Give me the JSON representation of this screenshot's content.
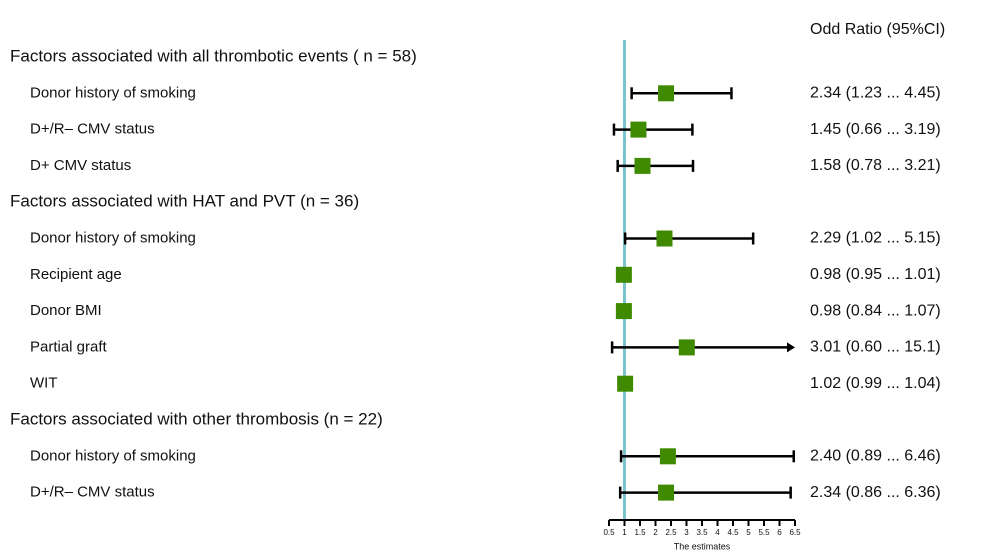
{
  "chart_data": {
    "type": "forest",
    "column_header": "Odd Ratio (95%CI)",
    "xlabel": "The estimates",
    "xlim": [
      0.5,
      6.5
    ],
    "xticks": [
      0.5,
      1,
      1.5,
      2,
      2.5,
      3,
      3.5,
      4,
      4.5,
      5,
      5.5,
      6,
      6.5
    ],
    "reference_line": 1,
    "color": "#3f8a00",
    "reference_color": "#79c4cc",
    "groups": [
      {
        "title": "Factors associated with all thrombotic events ( n = 58)",
        "items": [
          {
            "label": "Donor history of smoking",
            "estimate": 2.34,
            "lower": 1.23,
            "upper": 4.45,
            "value_label": "2.34 (1.23 ... 4.45)"
          },
          {
            "label": "D+/R– CMV status",
            "estimate": 1.45,
            "lower": 0.66,
            "upper": 3.19,
            "value_label": "1.45 (0.66 ... 3.19)"
          },
          {
            "label": "D+ CMV status",
            "estimate": 1.58,
            "lower": 0.78,
            "upper": 3.21,
            "value_label": "1.58 (0.78 ... 3.21)"
          }
        ]
      },
      {
        "title": "Factors associated with HAT and PVT (n = 36)",
        "items": [
          {
            "label": "Donor history of smoking",
            "estimate": 2.29,
            "lower": 1.02,
            "upper": 5.15,
            "value_label": "2.29 (1.02 ... 5.15)"
          },
          {
            "label": "Recipient age",
            "estimate": 0.98,
            "lower": 0.95,
            "upper": 1.01,
            "value_label": "0.98 (0.95 ... 1.01)"
          },
          {
            "label": "Donor BMI",
            "estimate": 0.98,
            "lower": 0.84,
            "upper": 1.07,
            "value_label": "0.98 (0.84 ... 1.07)"
          },
          {
            "label": "Partial graft",
            "estimate": 3.01,
            "lower": 0.6,
            "upper": 15.1,
            "value_label": "3.01 (0.60 ... 15.1)"
          },
          {
            "label": "WIT",
            "estimate": 1.02,
            "lower": 0.99,
            "upper": 1.04,
            "value_label": "1.02 (0.99 ... 1.04)"
          }
        ]
      },
      {
        "title": "Factors associated with other thrombosis (n = 22)",
        "items": [
          {
            "label": "Donor history of smoking",
            "estimate": 2.4,
            "lower": 0.89,
            "upper": 6.46,
            "value_label": "2.40 (0.89 ... 6.46)"
          },
          {
            "label": "D+/R– CMV status",
            "estimate": 2.34,
            "lower": 0.86,
            "upper": 6.36,
            "value_label": "2.34 (0.86 ... 6.36)"
          }
        ]
      }
    ]
  }
}
